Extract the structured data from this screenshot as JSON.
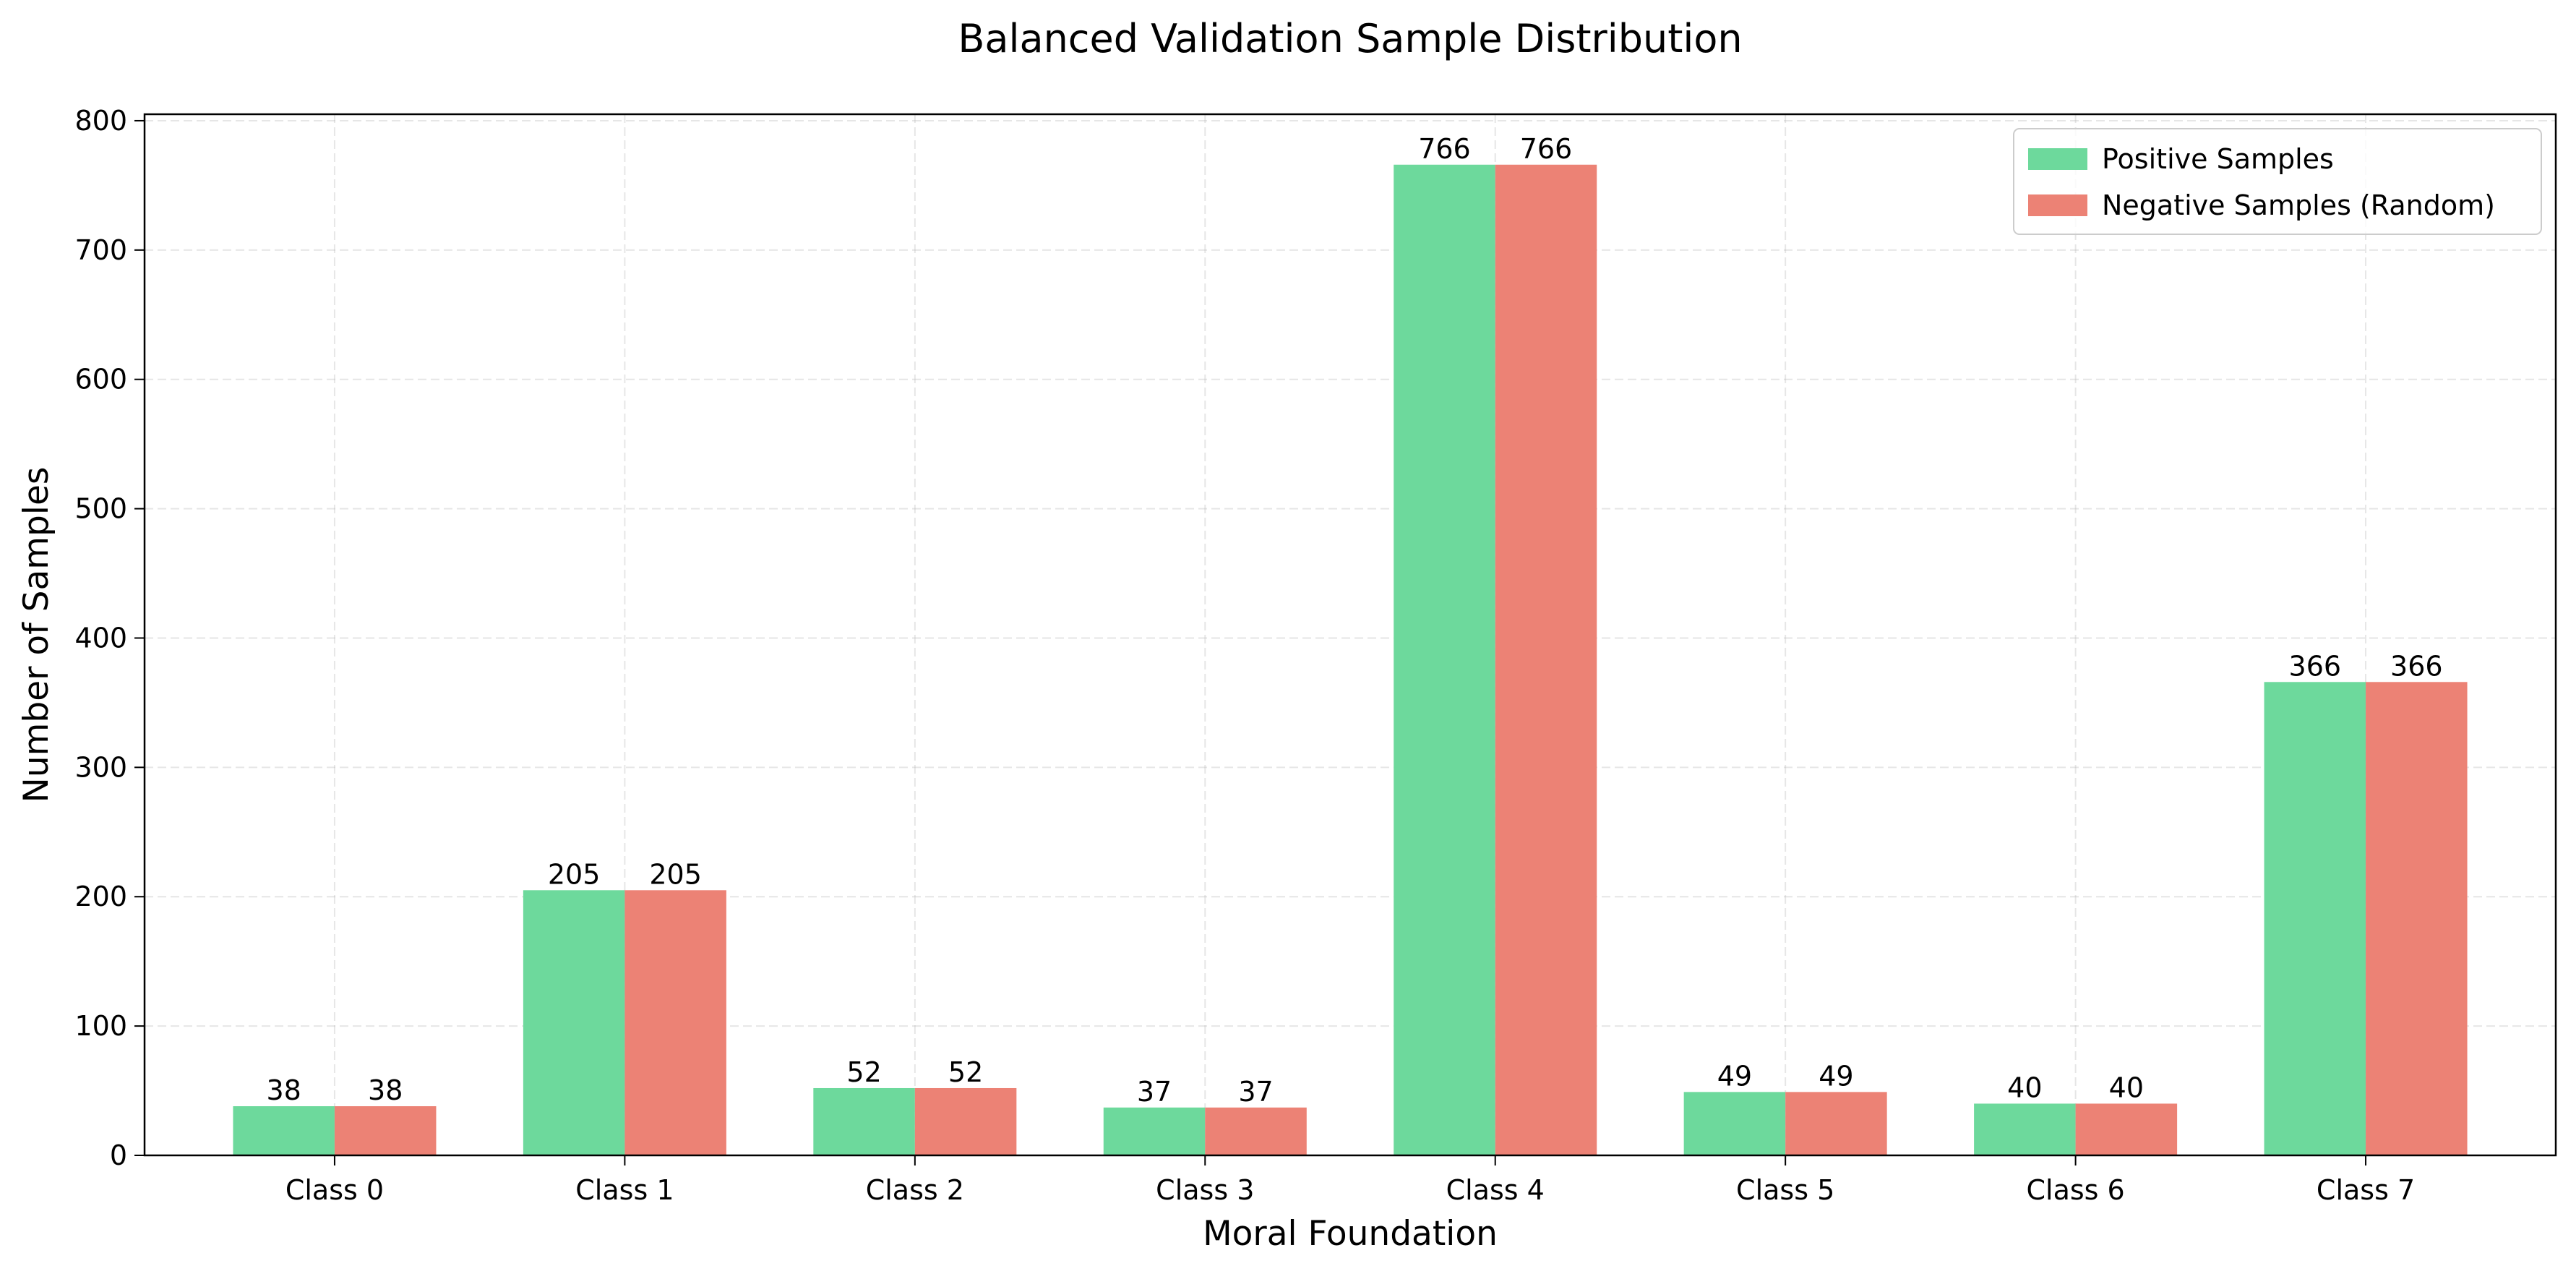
{
  "chart_data": {
    "type": "bar",
    "title": "Balanced Validation Sample Distribution",
    "xlabel": "Moral Foundation",
    "ylabel": "Number of Samples",
    "categories": [
      "Class 0",
      "Class 1",
      "Class 2",
      "Class 3",
      "Class 4",
      "Class 5",
      "Class 6",
      "Class 7"
    ],
    "series": [
      {
        "name": "Positive Samples",
        "color": "#6dd99c",
        "values": [
          38,
          205,
          52,
          37,
          766,
          49,
          40,
          366
        ]
      },
      {
        "name": "Negative Samples (Random)",
        "color": "#ec8275",
        "values": [
          38,
          205,
          52,
          37,
          766,
          49,
          40,
          366
        ]
      }
    ],
    "ylim": [
      0,
      805
    ],
    "yticks": [
      "0",
      "100",
      "200",
      "300",
      "400",
      "500",
      "600",
      "700",
      "800"
    ],
    "grid": true,
    "legend_position": "top-right",
    "data_labels": true
  }
}
